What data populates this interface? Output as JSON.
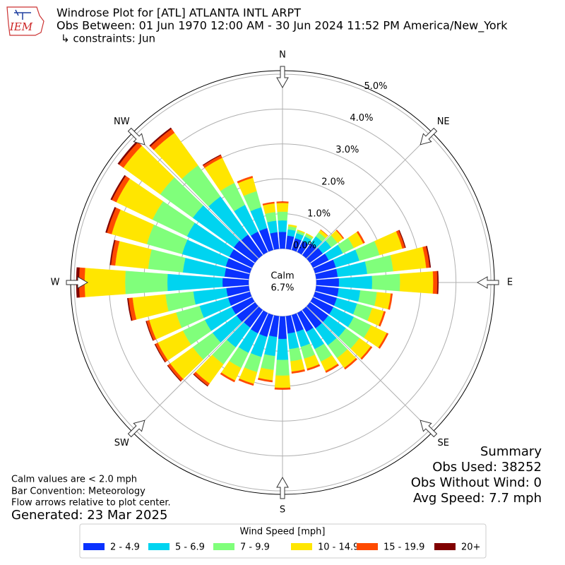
{
  "chart_data": {
    "type": "windrose",
    "title": "Windrose Plot for [ATL] ATLANTA INTL ARPT",
    "subtitle": "Obs Between: 01 Jun 1970 12:00 AM - 30 Jun 2024 11:52 PM America/New_York",
    "constraints": "↳ constraints: Jun",
    "logo_text": "IEM",
    "compass_labels": [
      "N",
      "NE",
      "E",
      "SE",
      "S",
      "SW",
      "W",
      "NW"
    ],
    "x": [
      0,
      10,
      20,
      30,
      40,
      50,
      60,
      70,
      80,
      90,
      100,
      110,
      120,
      130,
      140,
      150,
      160,
      170,
      180,
      190,
      200,
      210,
      220,
      230,
      240,
      250,
      260,
      270,
      280,
      290,
      300,
      310,
      320,
      330,
      340,
      350
    ],
    "rlim": [
      0,
      5.1
    ],
    "rticks": [
      {
        "value": 0,
        "label": "0.0%"
      },
      {
        "value": 1,
        "label": "1.0%"
      },
      {
        "value": 2,
        "label": "2.0%"
      },
      {
        "value": 3,
        "label": "3.0%"
      },
      {
        "value": 4,
        "label": "4.0%"
      },
      {
        "value": 5,
        "label": "5.0%"
      }
    ],
    "grid": true,
    "calm": {
      "label": "Calm",
      "value": 6.7,
      "value_label": "6.7%"
    },
    "legend_title": "Wind Speed [mph]",
    "series": [
      {
        "name": "2 - 4.9",
        "color": "#0a32ff",
        "values": [
          0.48,
          0.38,
          0.35,
          0.35,
          0.42,
          0.45,
          0.5,
          0.62,
          0.62,
          0.65,
          0.65,
          0.65,
          0.65,
          0.65,
          0.65,
          0.6,
          0.5,
          0.5,
          0.65,
          0.6,
          0.65,
          0.65,
          0.62,
          0.65,
          0.65,
          0.65,
          0.65,
          0.75,
          0.7,
          0.72,
          0.72,
          0.75,
          0.72,
          0.65,
          0.65,
          0.48
        ]
      },
      {
        "name": "5 - 6.9",
        "color": "#00d4f0",
        "values": [
          0.33,
          0.18,
          0.15,
          0.15,
          0.24,
          0.3,
          0.45,
          0.7,
          0.85,
          0.95,
          0.62,
          0.6,
          0.65,
          0.62,
          0.6,
          0.55,
          0.45,
          0.45,
          0.6,
          0.55,
          0.6,
          0.62,
          0.7,
          0.85,
          0.85,
          0.85,
          0.95,
          1.58,
          1.2,
          1.3,
          1.35,
          1.45,
          1.35,
          0.85,
          0.62,
          0.33
        ]
      },
      {
        "name": "7 - 9.9",
        "color": "#80ff7b",
        "values": [
          0.25,
          0.09,
          0.07,
          0.07,
          0.14,
          0.22,
          0.35,
          0.6,
          0.75,
          0.8,
          0.48,
          0.45,
          0.55,
          0.48,
          0.45,
          0.4,
          0.35,
          0.35,
          0.45,
          0.4,
          0.45,
          0.48,
          0.6,
          0.7,
          0.7,
          0.7,
          0.8,
          1.21,
          1.0,
          1.05,
          1.1,
          1.15,
          1.1,
          0.7,
          0.48,
          0.25
        ]
      },
      {
        "name": "10 - 14.9",
        "color": "#ffe600",
        "values": [
          0.25,
          0.05,
          0.03,
          0.03,
          0.09,
          0.2,
          0.3,
          0.68,
          0.95,
          0.95,
          0.4,
          0.35,
          0.5,
          0.4,
          0.35,
          0.3,
          0.3,
          0.3,
          0.35,
          0.3,
          0.35,
          0.4,
          0.68,
          0.8,
          0.8,
          0.8,
          0.95,
          1.16,
          0.95,
          1.05,
          1.15,
          1.3,
          1.15,
          0.8,
          0.4,
          0.25
        ]
      },
      {
        "name": "15 - 19.9",
        "color": "#ff4a00",
        "values": [
          0.04,
          0,
          0,
          0,
          0.01,
          0.03,
          0.05,
          0.08,
          0.1,
          0.12,
          0.05,
          0.05,
          0.05,
          0.05,
          0.05,
          0.05,
          0.05,
          0.05,
          0.05,
          0.05,
          0.05,
          0.05,
          0.08,
          0.08,
          0.08,
          0.08,
          0.12,
          0.16,
          0.12,
          0.14,
          0.14,
          0.15,
          0.14,
          0.08,
          0.05,
          0.04
        ]
      },
      {
        "name": "20+",
        "color": "#800000",
        "values": [
          0,
          0,
          0,
          0,
          0,
          0,
          0,
          0.02,
          0.03,
          0.03,
          0,
          0,
          0,
          0,
          0,
          0,
          0,
          0,
          0,
          0,
          0,
          0,
          0.02,
          0.02,
          0.02,
          0.02,
          0.03,
          0.08,
          0.03,
          0.04,
          0.04,
          0.05,
          0.04,
          0.02,
          0,
          0
        ]
      }
    ],
    "summary": [
      "Summary",
      "Obs Used: 38252",
      "Obs Without Wind: 0",
      "Avg Speed: 7.7 mph"
    ],
    "notes": [
      "Calm values are < 2.0 mph",
      "Bar Convention: Meteorology",
      "Flow arrows relative to plot center."
    ],
    "generated": "Generated: 23 Mar 2025"
  }
}
